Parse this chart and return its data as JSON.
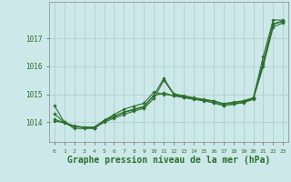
{
  "background_color": "#cce8e8",
  "plot_bg_color": "#cce8e8",
  "grid_color": "#aacccc",
  "line_color": "#2d6e2d",
  "xlabel": "Graphe pression niveau de la mer (hPa)",
  "xlabel_fontsize": 7,
  "xlim": [
    -0.5,
    23.5
  ],
  "ylim": [
    1013.3,
    1018.3
  ],
  "yticks": [
    1014,
    1015,
    1016,
    1017
  ],
  "xticks": [
    0,
    1,
    2,
    3,
    4,
    5,
    6,
    7,
    8,
    9,
    10,
    11,
    12,
    13,
    14,
    15,
    16,
    17,
    18,
    19,
    20,
    21,
    22,
    23
  ],
  "series": [
    [
      1014.3,
      1014.0,
      1013.85,
      1013.82,
      1013.82,
      1014.05,
      1014.2,
      1014.35,
      1014.45,
      1014.55,
      1014.95,
      1015.05,
      1014.95,
      1014.9,
      1014.85,
      1014.8,
      1014.75,
      1014.65,
      1014.7,
      1014.75,
      1014.85,
      1016.1,
      1017.5,
      1017.6
    ],
    [
      1014.05,
      1013.98,
      1013.85,
      1013.82,
      1013.8,
      1014.0,
      1014.15,
      1014.28,
      1014.4,
      1014.5,
      1014.85,
      1015.5,
      1015.0,
      1014.92,
      1014.85,
      1014.78,
      1014.7,
      1014.6,
      1014.65,
      1014.7,
      1014.82,
      1016.0,
      1017.4,
      1017.55
    ],
    [
      1014.1,
      1014.0,
      1013.87,
      1013.83,
      1013.83,
      1014.07,
      1014.22,
      1014.37,
      1014.47,
      1014.57,
      1014.97,
      1015.57,
      1015.02,
      1014.95,
      1014.88,
      1014.82,
      1014.77,
      1014.67,
      1014.72,
      1014.77,
      1014.88,
      1016.15,
      1017.52,
      1017.62
    ],
    [
      1014.6,
      1014.0,
      1013.78,
      1013.78,
      1013.78,
      1014.07,
      1014.28,
      1014.47,
      1014.58,
      1014.68,
      1015.08,
      1015.0,
      1014.95,
      1014.88,
      1014.82,
      1014.77,
      1014.7,
      1014.6,
      1014.65,
      1014.72,
      1014.85,
      1016.35,
      1017.65,
      1017.65
    ]
  ]
}
